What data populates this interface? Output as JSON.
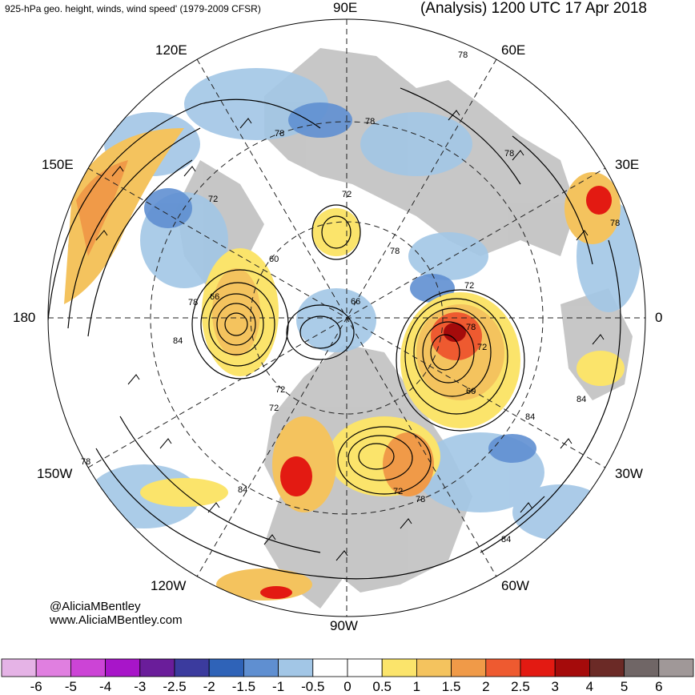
{
  "header": {
    "left": "925-hPa geo. height, winds, wind speed' (1979-2009 CFSR)",
    "right": "(Analysis) 1200 UTC 17 Apr 2018"
  },
  "longitudes": {
    "top": "90E",
    "upper_left_1": "120E",
    "upper_right_1": "60E",
    "upper_left_2": "150E",
    "upper_right_2": "30E",
    "left": "180",
    "right": "0",
    "lower_left_2": "150W",
    "lower_right_2": "30W",
    "lower_left_1": "120W",
    "lower_right_1": "60W",
    "bottom": "90W"
  },
  "credit": {
    "handle": "@AliciaMBentley",
    "site": "www.AliciaMBentley.com"
  },
  "contour_labels": [
    "78",
    "78",
    "78",
    "78",
    "72",
    "72",
    "72",
    "78",
    "60",
    "66",
    "66",
    "84",
    "78",
    "78",
    "72",
    "60",
    "84",
    "72",
    "72",
    "72",
    "78",
    "84",
    "84",
    "78",
    "78",
    "84"
  ],
  "colorbar": {
    "ticks": [
      "-6",
      "-5",
      "-4",
      "-3",
      "-2.5",
      "-2",
      "-1.5",
      "-1",
      "-0.5",
      "0",
      "0.5",
      "1",
      "1.5",
      "2",
      "2.5",
      "3",
      "4",
      "5",
      "6"
    ],
    "colors": [
      "#e5b3e6",
      "#e07fe0",
      "#cc44d6",
      "#a815c9",
      "#6a1d9a",
      "#3b3b9e",
      "#2f63b8",
      "#5f8fd1",
      "#a2c6e6",
      "#ffffff",
      "#ffffff",
      "#fbe46b",
      "#f4c35e",
      "#f09a48",
      "#ee5a30",
      "#e31a12",
      "#a50b0b",
      "#6b2a26",
      "#706666",
      "#a09898"
    ]
  },
  "colors": {
    "land": "#bdbdbd",
    "contour": "#000000"
  }
}
